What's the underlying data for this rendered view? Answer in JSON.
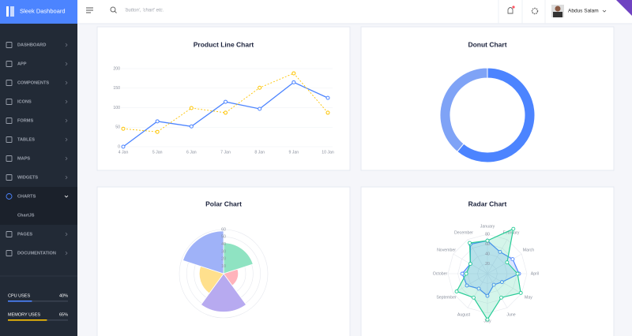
{
  "header": {
    "brand": "Sleek Dashboard",
    "search_placeholder": "'button', 'chart' etc.",
    "user": "Abdus Salam"
  },
  "sidebar": {
    "menu": [
      {
        "label": "DASHBOARD"
      },
      {
        "label": "APP"
      },
      {
        "label": "COMPONENTS"
      },
      {
        "label": "ICONS"
      },
      {
        "label": "FORMS"
      },
      {
        "label": "TABLES"
      },
      {
        "label": "MAPS"
      },
      {
        "label": "WIDGETS"
      },
      {
        "label": "CHARTS",
        "active": true,
        "children": [
          "ChartJS"
        ]
      },
      {
        "label": "PAGES"
      },
      {
        "label": "DOCUMENTATION"
      }
    ]
  },
  "usage": [
    {
      "label": "CPU USES",
      "value": 40,
      "value_label": "40%",
      "color": "#4c84ff"
    },
    {
      "label": "MEMORY USES",
      "value": 65,
      "value_label": "65%",
      "color": "#fec400"
    }
  ],
  "chart_data": [
    {
      "type": "line",
      "title": "Product Line Chart",
      "categories": [
        "4 Jan",
        "5 Jan",
        "6 Jan",
        "7 Jan",
        "8 Jan",
        "9 Jan",
        "10 Jan"
      ],
      "series": [
        {
          "color": "#4c84ff",
          "dashed": false,
          "values": [
            0,
            65,
            52,
            115,
            97,
            165,
            125
          ]
        },
        {
          "color": "#fec400",
          "dashed": true,
          "values": [
            46,
            38,
            99,
            87,
            151,
            188,
            87
          ]
        }
      ],
      "ylim": [
        0,
        200
      ],
      "yticks": [
        0,
        50,
        100,
        150,
        200
      ],
      "grid": true
    },
    {
      "type": "donut",
      "title": "Donut Chart",
      "values": [
        61,
        39
      ],
      "colors": [
        "#4c84ff",
        "#7fa3f6"
      ]
    },
    {
      "type": "polar",
      "title": "Polar Chart",
      "values": [
        42,
        20,
        52,
        33,
        58
      ],
      "colors": [
        "#8fe3c2",
        "#ffb3bb",
        "#b7aaf0",
        "#ffe08d",
        "#9fb2f8"
      ],
      "ylim": [
        0,
        60
      ],
      "yticks": [
        10,
        20,
        30,
        40,
        50,
        60
      ],
      "grid": true
    },
    {
      "type": "radar",
      "title": "Radar Chart",
      "categories": [
        "January",
        "February",
        "March",
        "April",
        "May",
        "June",
        "July",
        "August",
        "September",
        "October",
        "November",
        "December"
      ],
      "series": [
        {
          "color": "#4c84ff",
          "values": [
            67,
            51,
            59,
            64,
            34,
            26,
            45,
            35,
            48,
            51,
            40,
            69
          ]
        },
        {
          "color": "#29cc97",
          "values": [
            67,
            105,
            46,
            61,
            78,
            56,
            93,
            56,
            72,
            43,
            40,
            72
          ]
        }
      ],
      "ylim": [
        0,
        80
      ],
      "yticks": [
        20,
        40,
        60,
        80
      ],
      "grid": true
    }
  ]
}
